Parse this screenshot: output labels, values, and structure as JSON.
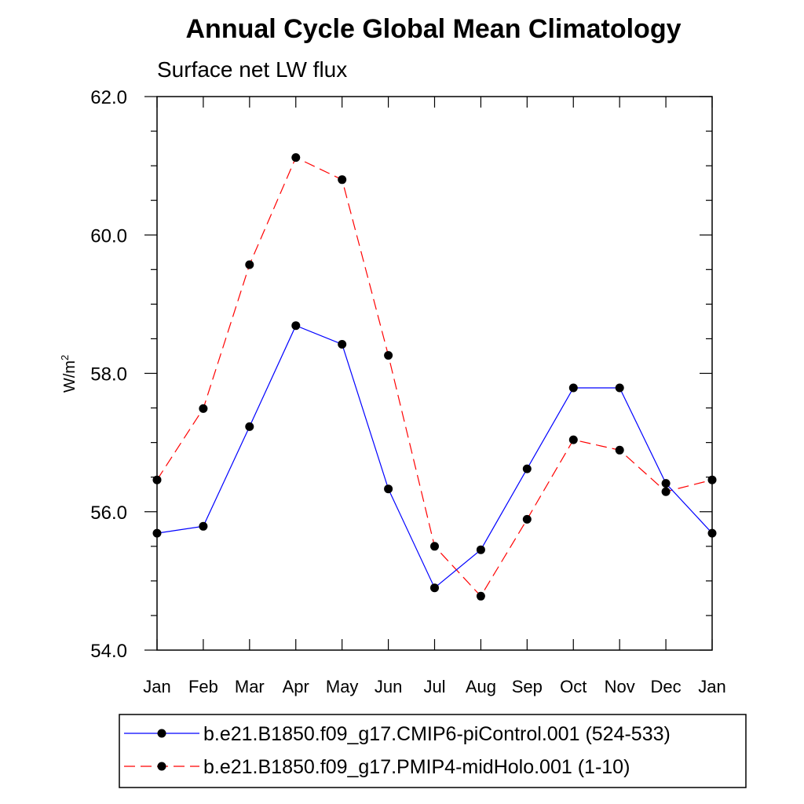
{
  "chart_data": {
    "type": "line",
    "title": "Annual Cycle Global Mean Climatology",
    "subtitle": "Surface net LW flux",
    "ylabel": "W/m",
    "ylabel_superscript": "2",
    "ylim": [
      54.0,
      62.0
    ],
    "yticks": [
      "54.0",
      "56.0",
      "58.0",
      "60.0",
      "62.0"
    ],
    "yticks_values": [
      54.0,
      56.0,
      58.0,
      60.0,
      62.0
    ],
    "categories": [
      "Jan",
      "Feb",
      "Mar",
      "Apr",
      "May",
      "Jun",
      "Jul",
      "Aug",
      "Sep",
      "Oct",
      "Nov",
      "Dec",
      "Jan"
    ],
    "series": [
      {
        "name": "b.e21.B1850.f09_g17.CMIP6-piControl.001 (524-533)",
        "color": "#0000ff",
        "dash": "solid",
        "values": [
          55.69,
          55.79,
          57.23,
          58.69,
          58.42,
          56.33,
          54.9,
          55.45,
          56.62,
          57.79,
          57.79,
          56.41,
          55.69
        ]
      },
      {
        "name": "b.e21.B1850.f09_g17.PMIP4-midHolo.001 (1-10)",
        "color": "#ff0000",
        "dash": "dashed",
        "values": [
          56.46,
          57.49,
          59.57,
          61.12,
          60.8,
          58.26,
          55.5,
          54.78,
          55.89,
          57.04,
          56.89,
          56.29,
          56.46
        ]
      }
    ],
    "legend_position": "bottom"
  }
}
